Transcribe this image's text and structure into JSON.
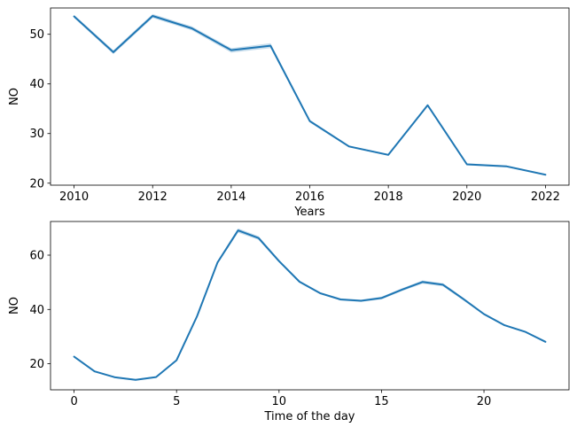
{
  "chart_data": [
    {
      "type": "line",
      "xlabel": "Years",
      "ylabel": "NO",
      "xlim": [
        2009.4,
        2022.6
      ],
      "ylim": [
        19.6,
        55.3
      ],
      "xticks": [
        2010,
        2012,
        2014,
        2016,
        2018,
        2020,
        2022
      ],
      "yticks": [
        20,
        30,
        40,
        50
      ],
      "series": [
        {
          "color": "#1f77b4",
          "x": [
            2010,
            2011,
            2012,
            2013,
            2014,
            2015,
            2016,
            2017,
            2018,
            2019,
            2020,
            2021,
            2022
          ],
          "y": [
            53.6,
            46.4,
            53.7,
            51.2,
            46.8,
            47.7,
            32.5,
            27.4,
            25.7,
            35.7,
            23.8,
            23.4,
            21.7
          ],
          "ci_lower": [
            53.3,
            46.0,
            53.3,
            50.8,
            46.3,
            47.2,
            32.2,
            27.2,
            25.5,
            35.5,
            23.6,
            23.2,
            21.5
          ],
          "ci_upper": [
            53.9,
            46.8,
            54.1,
            51.6,
            47.2,
            48.2,
            32.8,
            27.6,
            25.9,
            35.9,
            24.0,
            23.6,
            21.9
          ]
        }
      ]
    },
    {
      "type": "line",
      "xlabel": "Time of the day",
      "ylabel": "NO",
      "xlim": [
        -1.15,
        24.15
      ],
      "ylim": [
        10.4,
        72.4
      ],
      "xticks": [
        0,
        5,
        10,
        15,
        20
      ],
      "yticks": [
        20,
        40,
        60
      ],
      "series": [
        {
          "color": "#1f77b4",
          "x": [
            0,
            1,
            2,
            3,
            4,
            5,
            6,
            7,
            8,
            9,
            10,
            11,
            12,
            13,
            14,
            15,
            16,
            17,
            18,
            19,
            20,
            21,
            22,
            23
          ],
          "y": [
            22.6,
            17.2,
            15.0,
            14.1,
            15.1,
            21.3,
            37.5,
            57.3,
            69.1,
            66.3,
            57.8,
            50.2,
            46.0,
            43.7,
            43.2,
            44.2,
            47.3,
            50.1,
            49.1,
            43.8,
            38.3,
            34.2,
            31.8,
            28.1
          ],
          "ci_lower": [
            22.3,
            16.9,
            14.7,
            13.8,
            14.8,
            21.0,
            37.1,
            56.7,
            68.3,
            65.6,
            57.3,
            49.8,
            45.6,
            43.3,
            42.8,
            43.7,
            46.8,
            49.5,
            48.5,
            43.3,
            37.9,
            33.9,
            31.5,
            27.8
          ],
          "ci_upper": [
            22.9,
            17.5,
            15.3,
            14.4,
            15.4,
            21.6,
            37.9,
            57.9,
            69.9,
            67.0,
            58.3,
            50.6,
            46.4,
            44.1,
            43.6,
            44.7,
            47.8,
            50.7,
            49.7,
            44.3,
            38.7,
            34.5,
            32.1,
            28.4
          ]
        }
      ]
    }
  ]
}
